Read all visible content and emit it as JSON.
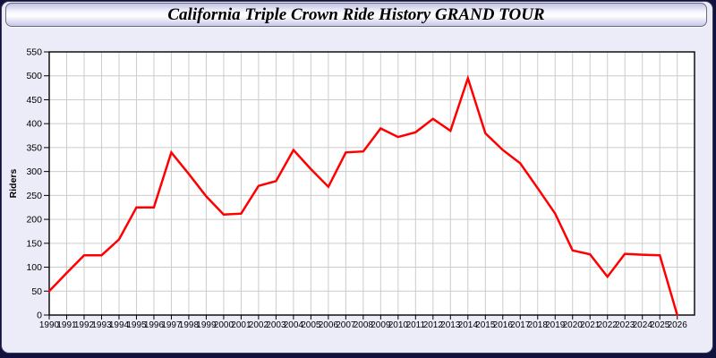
{
  "window": {
    "title": "California Triple Crown Ride History GRAND TOUR"
  },
  "chart_data": {
    "type": "line",
    "title": "California Triple Crown Ride History GRAND TOUR",
    "xlabel": "",
    "ylabel": "Riders",
    "x_categories": [
      1990,
      1991,
      1992,
      1993,
      1994,
      1995,
      1996,
      1997,
      1998,
      1999,
      2000,
      2001,
      2002,
      2003,
      2004,
      2005,
      2006,
      2007,
      2008,
      2009,
      2010,
      2011,
      2012,
      2013,
      2014,
      2015,
      2016,
      2017,
      2018,
      2019,
      2020,
      2021,
      2022,
      2023,
      2024,
      2025,
      2026
    ],
    "series": [
      {
        "name": "Riders",
        "color": "#ff0000",
        "values": [
          50,
          88,
          125,
          125,
          158,
          225,
          225,
          340,
          295,
          248,
          210,
          212,
          270,
          280,
          345,
          305,
          268,
          340,
          342,
          390,
          372,
          382,
          410,
          385,
          495,
          380,
          345,
          317,
          265,
          212,
          135,
          127,
          80,
          128,
          126,
          125,
          0
        ]
      }
    ],
    "ylim": [
      0,
      550
    ],
    "ytick_step": 50,
    "grid": true,
    "legend": "none",
    "line_width": 2.5
  },
  "colors": {
    "frame": "#12123f",
    "panel_bg": "#ececf9",
    "plot_bg": "#ffffff",
    "grid": "#cccccc",
    "axis": "#000000",
    "tick_label": "#000000",
    "line": "#ff0000"
  }
}
